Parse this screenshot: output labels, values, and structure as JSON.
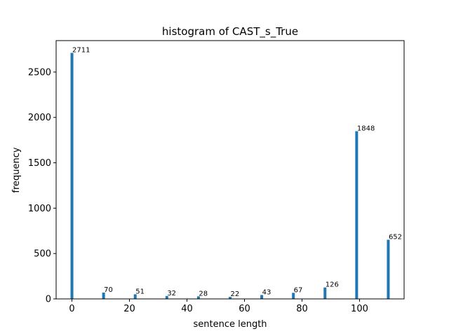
{
  "chart_data": {
    "type": "bar",
    "title": "histogram of CAST_s_True",
    "xlabel": "sentence length",
    "ylabel": "frequency",
    "x": [
      0,
      11,
      22,
      33,
      44,
      55,
      66,
      77,
      88,
      99,
      110
    ],
    "values": [
      2711,
      70,
      51,
      32,
      28,
      22,
      43,
      67,
      126,
      1848,
      652
    ],
    "data_labels": [
      "2711",
      "70",
      "51",
      "32",
      "28",
      "22",
      "43",
      "67",
      "126",
      "1848",
      "652"
    ],
    "xlim": [
      -5.5,
      115.5
    ],
    "ylim": [
      0,
      2846.55
    ],
    "xticks": [
      0,
      20,
      40,
      60,
      80,
      100
    ],
    "xtick_labels": [
      "0",
      "20",
      "40",
      "60",
      "80",
      "100"
    ],
    "yticks": [
      0,
      500,
      1000,
      1500,
      2000,
      2500
    ],
    "ytick_labels": [
      "0",
      "500",
      "1000",
      "1500",
      "2000",
      "2500"
    ],
    "bar_color": "#1f77b4",
    "grid": false,
    "legend": "none"
  }
}
